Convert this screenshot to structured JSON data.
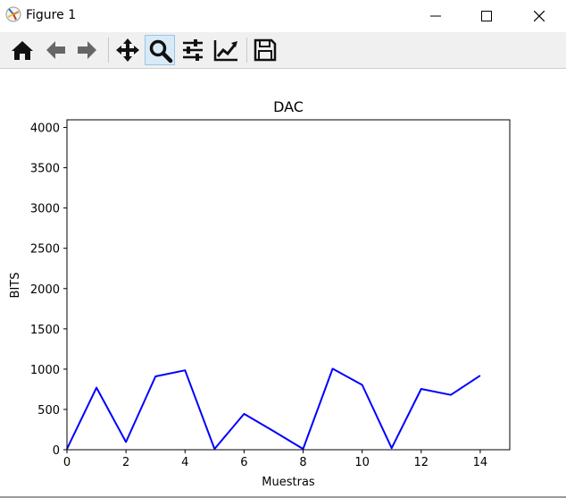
{
  "window": {
    "title": "Figure 1",
    "controls": [
      "minimize",
      "maximize",
      "close"
    ]
  },
  "toolbar": {
    "buttons": [
      {
        "icon": "home-icon",
        "tooltip": "Home"
      },
      {
        "icon": "back-arrow-icon",
        "tooltip": "Back"
      },
      {
        "icon": "forward-arrow-icon",
        "tooltip": "Forward"
      },
      {
        "icon": "pan-icon",
        "tooltip": "Pan"
      },
      {
        "icon": "zoom-icon",
        "tooltip": "Zoom",
        "active": true
      },
      {
        "icon": "configure-subplots-icon",
        "tooltip": "Subplots"
      },
      {
        "icon": "edit-axis-icon",
        "tooltip": "Customize"
      },
      {
        "icon": "save-icon",
        "tooltip": "Save"
      }
    ]
  },
  "chart_data": {
    "type": "line",
    "title": "DAC",
    "xlabel": "Muestras",
    "ylabel": "BITS",
    "xlim": [
      0,
      15
    ],
    "ylim": [
      0,
      4095
    ],
    "xticks": [
      "0",
      "2",
      "4",
      "6",
      "8",
      "10",
      "12",
      "14"
    ],
    "yticks": [
      "0",
      "500",
      "1000",
      "1500",
      "2000",
      "2500",
      "3000",
      "3500",
      "4000"
    ],
    "grid": false,
    "series": [
      {
        "color": "#0000ff",
        "x": [
          0,
          1,
          2,
          3,
          4,
          5,
          6,
          7,
          8,
          9,
          10,
          11,
          12,
          13,
          14
        ],
        "y": [
          10,
          770,
          95,
          910,
          985,
          10,
          445,
          230,
          10,
          1005,
          805,
          20,
          755,
          680,
          920
        ]
      }
    ]
  }
}
